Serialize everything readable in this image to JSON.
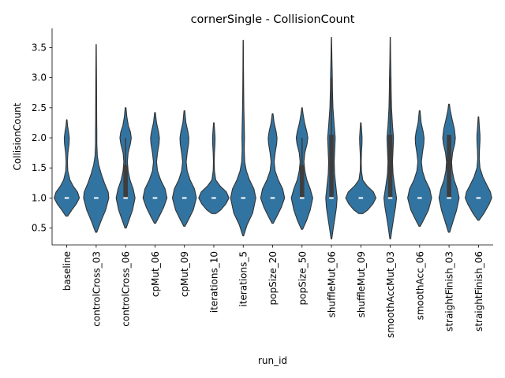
{
  "chart_data": {
    "type": "violin",
    "title": "cornerSingle - CollisionCount",
    "xlabel": "run_id",
    "ylabel": "CollisionCount",
    "ylim": [
      0.22,
      3.82
    ],
    "yticks": [
      0.5,
      1.0,
      1.5,
      2.0,
      2.5,
      3.0,
      3.5
    ],
    "ytick_labels": [
      "0.5",
      "1.0",
      "1.5",
      "2.0",
      "2.5",
      "3.0",
      "3.5"
    ],
    "grid": false,
    "legend": "none",
    "colors": {
      "violin_fill": "#3274a1",
      "violin_edge": "#333333",
      "box": "#3d3d3d",
      "median": "#ffffff"
    },
    "categories": [
      "baseline",
      "controlCross_03",
      "controlCross_06",
      "cpMut_06",
      "cpMut_09",
      "iterations_10",
      "iterations_5",
      "popSize_20",
      "popSize_50",
      "shuffleMut_06",
      "shuffleMut_09",
      "smoothAccMut_03",
      "smoothAcc_06",
      "straightFinish_03",
      "straightFinish_06"
    ],
    "violins": [
      {
        "min": 0.7,
        "max": 2.3,
        "q1": 1.0,
        "median": 1.0,
        "q3": 1.0,
        "wL": 1.0,
        "wH": 1.0,
        "profile": [
          [
            0.7,
            0.08
          ],
          [
            0.8,
            0.4
          ],
          [
            0.9,
            0.75
          ],
          [
            1.0,
            1.0
          ],
          [
            1.1,
            0.85
          ],
          [
            1.2,
            0.5
          ],
          [
            1.3,
            0.25
          ],
          [
            1.45,
            0.08
          ],
          [
            1.6,
            0.05
          ],
          [
            1.75,
            0.09
          ],
          [
            1.9,
            0.18
          ],
          [
            2.0,
            0.2
          ],
          [
            2.1,
            0.14
          ],
          [
            2.2,
            0.06
          ],
          [
            2.3,
            0.02
          ]
        ]
      },
      {
        "min": 0.43,
        "max": 3.55,
        "q1": 1.0,
        "median": 1.0,
        "q3": 1.0,
        "wL": 1.0,
        "wH": 1.0,
        "profile": [
          [
            0.43,
            0.05
          ],
          [
            0.6,
            0.35
          ],
          [
            0.8,
            0.75
          ],
          [
            1.0,
            1.0
          ],
          [
            1.1,
            0.95
          ],
          [
            1.25,
            0.65
          ],
          [
            1.4,
            0.4
          ],
          [
            1.55,
            0.2
          ],
          [
            1.7,
            0.09
          ],
          [
            1.9,
            0.05
          ],
          [
            2.1,
            0.05
          ],
          [
            2.3,
            0.04
          ],
          [
            2.6,
            0.035
          ],
          [
            2.9,
            0.03
          ],
          [
            3.2,
            0.02
          ],
          [
            3.55,
            0.01
          ]
        ]
      },
      {
        "min": 0.5,
        "max": 2.5,
        "q1": 1.0,
        "median": 1.0,
        "q3": 1.55,
        "wL": 1.0,
        "wH": 2.0,
        "profile": [
          [
            0.5,
            0.05
          ],
          [
            0.65,
            0.3
          ],
          [
            0.8,
            0.55
          ],
          [
            1.0,
            0.75
          ],
          [
            1.15,
            0.6
          ],
          [
            1.3,
            0.35
          ],
          [
            1.45,
            0.2
          ],
          [
            1.6,
            0.14
          ],
          [
            1.75,
            0.2
          ],
          [
            1.9,
            0.38
          ],
          [
            2.0,
            0.45
          ],
          [
            2.1,
            0.38
          ],
          [
            2.2,
            0.22
          ],
          [
            2.35,
            0.1
          ],
          [
            2.5,
            0.03
          ]
        ]
      },
      {
        "min": 0.58,
        "max": 2.42,
        "q1": 1.0,
        "median": 1.0,
        "q3": 1.0,
        "wL": 1.0,
        "wH": 1.0,
        "profile": [
          [
            0.58,
            0.05
          ],
          [
            0.7,
            0.35
          ],
          [
            0.85,
            0.7
          ],
          [
            1.0,
            0.95
          ],
          [
            1.15,
            0.8
          ],
          [
            1.3,
            0.45
          ],
          [
            1.45,
            0.2
          ],
          [
            1.6,
            0.12
          ],
          [
            1.75,
            0.2
          ],
          [
            1.9,
            0.32
          ],
          [
            2.0,
            0.35
          ],
          [
            2.1,
            0.28
          ],
          [
            2.25,
            0.12
          ],
          [
            2.42,
            0.03
          ]
        ]
      },
      {
        "min": 0.53,
        "max": 2.45,
        "q1": 1.0,
        "median": 1.0,
        "q3": 1.0,
        "wL": 1.0,
        "wH": 1.0,
        "profile": [
          [
            0.53,
            0.05
          ],
          [
            0.65,
            0.35
          ],
          [
            0.8,
            0.7
          ],
          [
            1.0,
            0.95
          ],
          [
            1.15,
            0.8
          ],
          [
            1.3,
            0.45
          ],
          [
            1.45,
            0.22
          ],
          [
            1.6,
            0.14
          ],
          [
            1.75,
            0.22
          ],
          [
            1.9,
            0.33
          ],
          [
            2.0,
            0.35
          ],
          [
            2.1,
            0.28
          ],
          [
            2.25,
            0.12
          ],
          [
            2.45,
            0.03
          ]
        ]
      },
      {
        "min": 0.74,
        "max": 2.25,
        "q1": 1.0,
        "median": 1.0,
        "q3": 1.0,
        "wL": 1.0,
        "wH": 1.0,
        "profile": [
          [
            0.74,
            0.15
          ],
          [
            0.8,
            0.55
          ],
          [
            0.9,
            0.95
          ],
          [
            1.0,
            1.2
          ],
          [
            1.1,
            1.0
          ],
          [
            1.2,
            0.5
          ],
          [
            1.3,
            0.15
          ],
          [
            1.45,
            0.05
          ],
          [
            1.6,
            0.03
          ],
          [
            1.75,
            0.05
          ],
          [
            1.9,
            0.09
          ],
          [
            2.0,
            0.1
          ],
          [
            2.1,
            0.07
          ],
          [
            2.25,
            0.02
          ]
        ]
      },
      {
        "min": 0.37,
        "max": 3.62,
        "q1": 1.0,
        "median": 1.0,
        "q3": 1.0,
        "wL": 1.0,
        "wH": 1.0,
        "profile": [
          [
            0.37,
            0.03
          ],
          [
            0.55,
            0.3
          ],
          [
            0.75,
            0.75
          ],
          [
            1.0,
            1.0
          ],
          [
            1.15,
            0.85
          ],
          [
            1.3,
            0.5
          ],
          [
            1.45,
            0.25
          ],
          [
            1.6,
            0.12
          ],
          [
            1.8,
            0.08
          ],
          [
            2.0,
            0.1
          ],
          [
            2.2,
            0.08
          ],
          [
            2.5,
            0.05
          ],
          [
            2.8,
            0.035
          ],
          [
            3.2,
            0.02
          ],
          [
            3.62,
            0.01
          ]
        ]
      },
      {
        "min": 0.58,
        "max": 2.4,
        "q1": 1.0,
        "median": 1.0,
        "q3": 1.0,
        "wL": 1.0,
        "wH": 1.0,
        "profile": [
          [
            0.58,
            0.05
          ],
          [
            0.7,
            0.35
          ],
          [
            0.85,
            0.7
          ],
          [
            1.0,
            0.95
          ],
          [
            1.15,
            0.8
          ],
          [
            1.3,
            0.45
          ],
          [
            1.45,
            0.2
          ],
          [
            1.6,
            0.12
          ],
          [
            1.75,
            0.2
          ],
          [
            1.9,
            0.32
          ],
          [
            2.0,
            0.35
          ],
          [
            2.1,
            0.28
          ],
          [
            2.25,
            0.12
          ],
          [
            2.4,
            0.03
          ]
        ]
      },
      {
        "min": 0.48,
        "max": 2.5,
        "q1": 1.0,
        "median": 1.0,
        "q3": 1.55,
        "wL": 1.0,
        "wH": 2.0,
        "profile": [
          [
            0.48,
            0.05
          ],
          [
            0.62,
            0.35
          ],
          [
            0.8,
            0.65
          ],
          [
            1.0,
            0.85
          ],
          [
            1.15,
            0.65
          ],
          [
            1.3,
            0.38
          ],
          [
            1.45,
            0.22
          ],
          [
            1.6,
            0.15
          ],
          [
            1.75,
            0.22
          ],
          [
            1.9,
            0.4
          ],
          [
            2.0,
            0.46
          ],
          [
            2.1,
            0.38
          ],
          [
            2.25,
            0.2
          ],
          [
            2.4,
            0.08
          ],
          [
            2.5,
            0.02
          ]
        ]
      },
      {
        "min": 0.32,
        "max": 3.67,
        "q1": 1.0,
        "median": 1.0,
        "q3": 2.05,
        "wL": 1.0,
        "wH": 3.0,
        "profile": [
          [
            0.32,
            0.03
          ],
          [
            0.5,
            0.15
          ],
          [
            0.7,
            0.3
          ],
          [
            0.85,
            0.4
          ],
          [
            1.0,
            0.45
          ],
          [
            1.2,
            0.35
          ],
          [
            1.4,
            0.25
          ],
          [
            1.6,
            0.22
          ],
          [
            1.8,
            0.26
          ],
          [
            2.0,
            0.3
          ],
          [
            2.2,
            0.22
          ],
          [
            2.5,
            0.12
          ],
          [
            2.8,
            0.08
          ],
          [
            3.0,
            0.07
          ],
          [
            3.3,
            0.04
          ],
          [
            3.67,
            0.01
          ]
        ]
      },
      {
        "min": 0.74,
        "max": 2.25,
        "q1": 1.0,
        "median": 1.0,
        "q3": 1.0,
        "wL": 1.0,
        "wH": 1.0,
        "profile": [
          [
            0.74,
            0.15
          ],
          [
            0.8,
            0.55
          ],
          [
            0.9,
            0.95
          ],
          [
            1.0,
            1.2
          ],
          [
            1.1,
            1.0
          ],
          [
            1.2,
            0.5
          ],
          [
            1.3,
            0.15
          ],
          [
            1.45,
            0.05
          ],
          [
            1.6,
            0.03
          ],
          [
            1.75,
            0.05
          ],
          [
            1.9,
            0.09
          ],
          [
            2.0,
            0.1
          ],
          [
            2.1,
            0.07
          ],
          [
            2.25,
            0.02
          ]
        ]
      },
      {
        "min": 0.32,
        "max": 3.67,
        "q1": 1.0,
        "median": 1.0,
        "q3": 2.05,
        "wL": 1.0,
        "wH": 3.0,
        "profile": [
          [
            0.32,
            0.03
          ],
          [
            0.5,
            0.15
          ],
          [
            0.7,
            0.3
          ],
          [
            0.85,
            0.42
          ],
          [
            1.0,
            0.5
          ],
          [
            1.2,
            0.35
          ],
          [
            1.4,
            0.22
          ],
          [
            1.6,
            0.18
          ],
          [
            1.8,
            0.22
          ],
          [
            2.0,
            0.26
          ],
          [
            2.2,
            0.18
          ],
          [
            2.5,
            0.1
          ],
          [
            2.8,
            0.07
          ],
          [
            3.0,
            0.06
          ],
          [
            3.3,
            0.03
          ],
          [
            3.67,
            0.01
          ]
        ]
      },
      {
        "min": 0.53,
        "max": 2.45,
        "q1": 1.0,
        "median": 1.0,
        "q3": 1.0,
        "wL": 1.0,
        "wH": 1.0,
        "profile": [
          [
            0.53,
            0.05
          ],
          [
            0.65,
            0.35
          ],
          [
            0.8,
            0.7
          ],
          [
            1.0,
            0.95
          ],
          [
            1.15,
            0.8
          ],
          [
            1.3,
            0.45
          ],
          [
            1.45,
            0.22
          ],
          [
            1.6,
            0.14
          ],
          [
            1.75,
            0.22
          ],
          [
            1.9,
            0.33
          ],
          [
            2.0,
            0.35
          ],
          [
            2.1,
            0.28
          ],
          [
            2.25,
            0.12
          ],
          [
            2.45,
            0.03
          ]
        ]
      },
      {
        "min": 0.43,
        "max": 2.56,
        "q1": 1.0,
        "median": 1.0,
        "q3": 2.05,
        "wL": 1.0,
        "wH": 2.0,
        "profile": [
          [
            0.43,
            0.05
          ],
          [
            0.6,
            0.3
          ],
          [
            0.8,
            0.6
          ],
          [
            1.0,
            0.8
          ],
          [
            1.15,
            0.65
          ],
          [
            1.3,
            0.4
          ],
          [
            1.45,
            0.25
          ],
          [
            1.6,
            0.2
          ],
          [
            1.75,
            0.28
          ],
          [
            1.9,
            0.45
          ],
          [
            2.0,
            0.5
          ],
          [
            2.15,
            0.42
          ],
          [
            2.3,
            0.25
          ],
          [
            2.45,
            0.1
          ],
          [
            2.56,
            0.03
          ]
        ]
      },
      {
        "min": 0.63,
        "max": 2.35,
        "q1": 1.0,
        "median": 1.0,
        "q3": 1.0,
        "wL": 1.0,
        "wH": 1.0,
        "profile": [
          [
            0.63,
            0.05
          ],
          [
            0.75,
            0.45
          ],
          [
            0.9,
            0.85
          ],
          [
            1.0,
            1.05
          ],
          [
            1.1,
            0.95
          ],
          [
            1.2,
            0.7
          ],
          [
            1.35,
            0.35
          ],
          [
            1.5,
            0.12
          ],
          [
            1.65,
            0.06
          ],
          [
            1.8,
            0.08
          ],
          [
            1.95,
            0.12
          ],
          [
            2.05,
            0.12
          ],
          [
            2.15,
            0.08
          ],
          [
            2.35,
            0.02
          ]
        ]
      }
    ]
  }
}
